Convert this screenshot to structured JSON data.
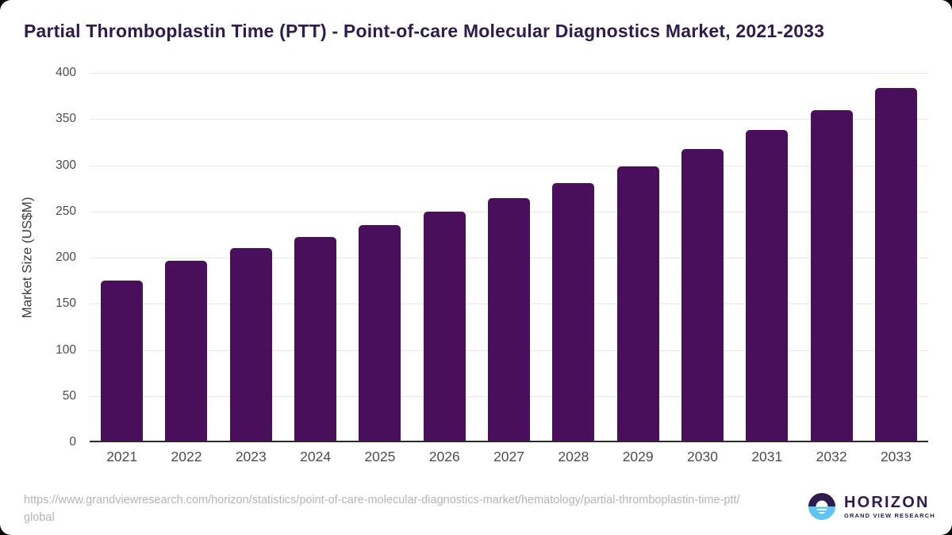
{
  "title": "Partial Thromboplastin Time (PTT) - Point-of-care Molecular Diagnostics Market, 2021-2033",
  "chart_data": {
    "type": "bar",
    "title": "Partial Thromboplastin Time (PTT) - Point-of-care Molecular Diagnostics Market, 2021-2033",
    "categories": [
      "2021",
      "2022",
      "2023",
      "2024",
      "2025",
      "2026",
      "2027",
      "2028",
      "2029",
      "2030",
      "2031",
      "2032",
      "2033"
    ],
    "values": [
      175,
      197,
      210,
      222,
      235,
      250,
      264,
      281,
      299,
      318,
      338,
      360,
      384
    ],
    "xlabel": "",
    "ylabel": "Market Size (US$M)",
    "ylim": [
      0,
      400
    ],
    "yticks": [
      0,
      50,
      100,
      150,
      200,
      250,
      300,
      350,
      400
    ],
    "grid": true,
    "legend": "none"
  },
  "footer": {
    "source_url": "https://www.grandviewresearch.com/horizon/statistics/point-of-care-molecular-diagnostics-market/hematology/partial-thromboplastin-time-ptt/global",
    "logo_name": "HORIZON",
    "logo_subtext": "GRAND VIEW RESEARCH"
  },
  "colors": {
    "bar": "#4a0f5a",
    "title": "#2f1b4d",
    "axis_text": "#4d4d4d",
    "grid": "#e8e8e8",
    "baseline": "#2b2b2b",
    "url_text": "#b4b4b4",
    "logo_purple": "#2f1b4d",
    "logo_blue": "#5ec5f2"
  }
}
